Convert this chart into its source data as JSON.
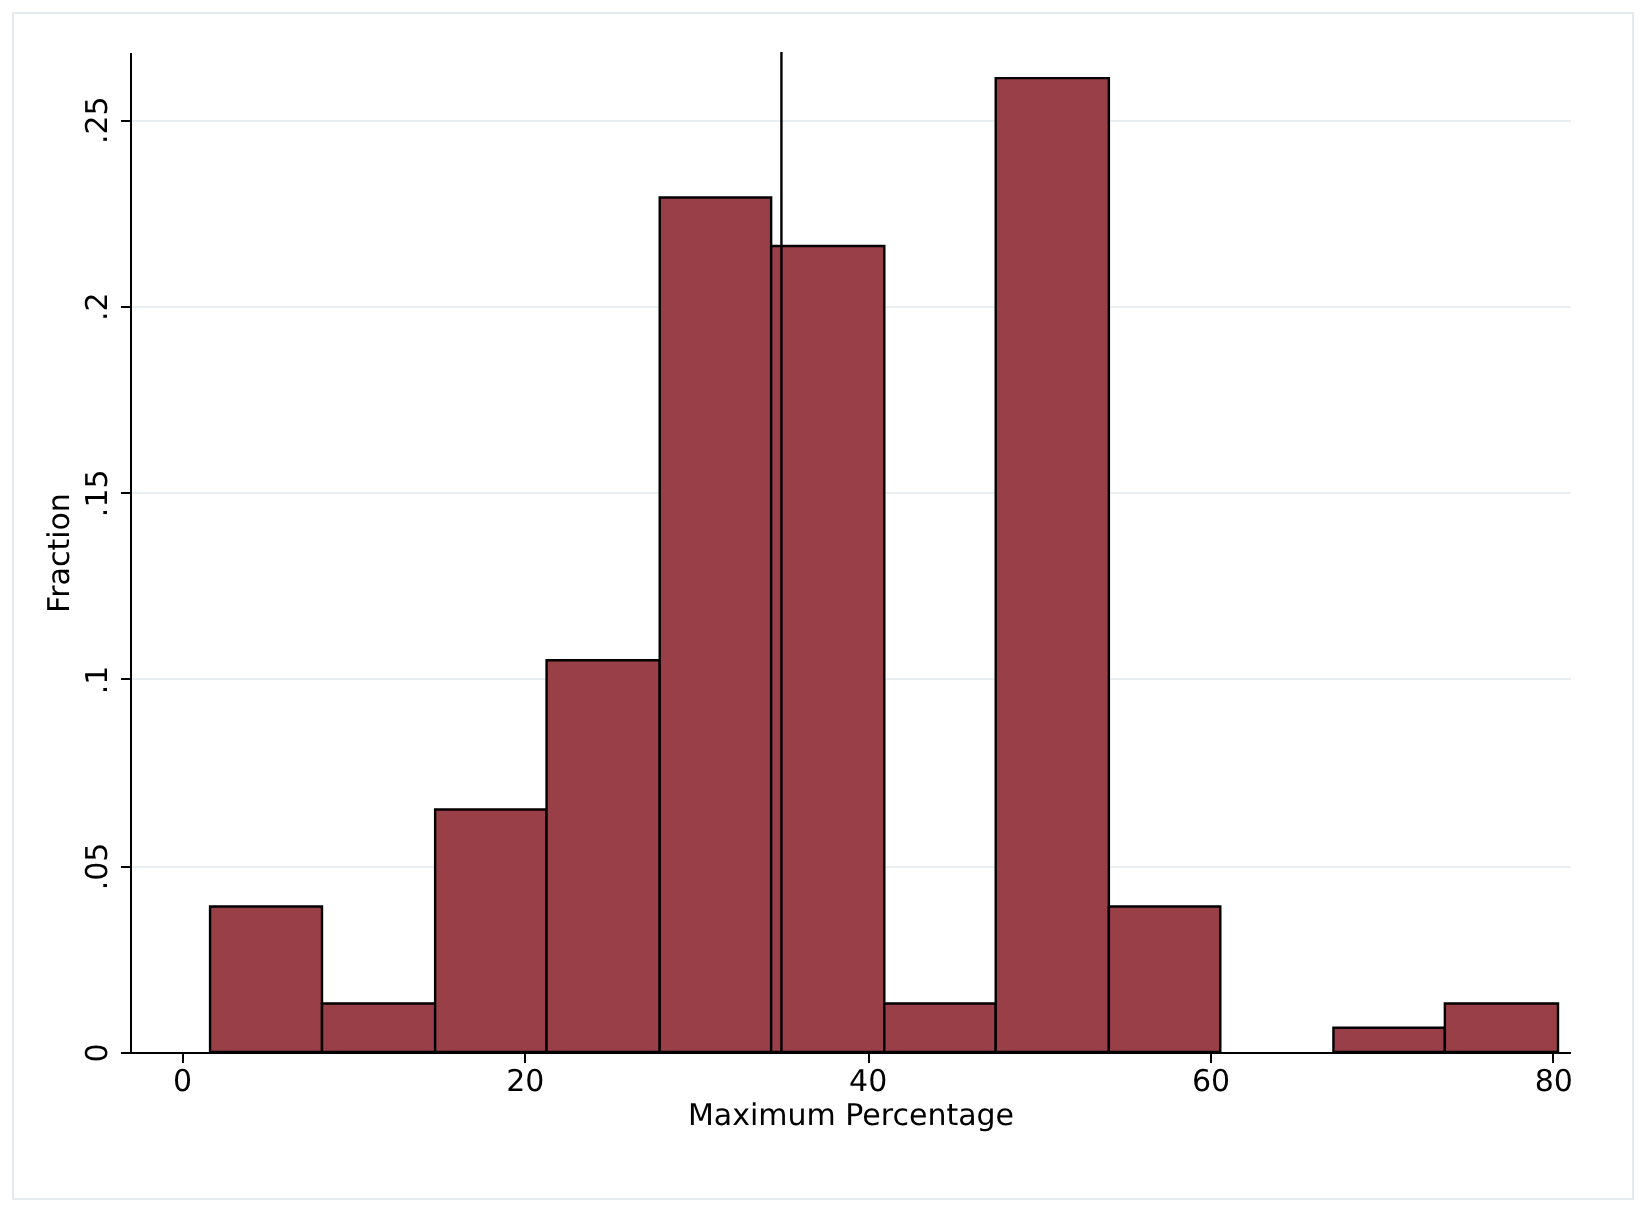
{
  "chart_data": {
    "type": "histogram",
    "xlabel": "Maximum Percentage",
    "ylabel": "Fraction",
    "bins": [
      1.67,
      8.2,
      14.8,
      21.3,
      27.9,
      34.4,
      41,
      47.5,
      54.1,
      60.6,
      67.2,
      73.7,
      80.3
    ],
    "values": [
      0.039,
      0.013,
      0.065,
      0.105,
      0.229,
      0.216,
      0.013,
      0.261,
      0.039,
      0,
      0.0065,
      0.013
    ],
    "color": "#993f47",
    "xlim": [
      -3,
      81
    ],
    "xticks": [
      0,
      20,
      40,
      60,
      80
    ],
    "ylim": [
      0,
      0.268
    ],
    "yticks": [
      0,
      {
        "value": 0.05,
        "label": ".05"
      },
      {
        "value": 0.1,
        "label": ".1"
      },
      {
        "value": 0.15,
        "label": ".15"
      },
      {
        "value": 0.2,
        "label": ".2"
      },
      {
        "value": 0.25,
        "label": ".25"
      }
    ],
    "grid": "y",
    "ref_lines": [
      {
        "axis": "x",
        "value": 35,
        "color": "#000000"
      }
    ]
  }
}
